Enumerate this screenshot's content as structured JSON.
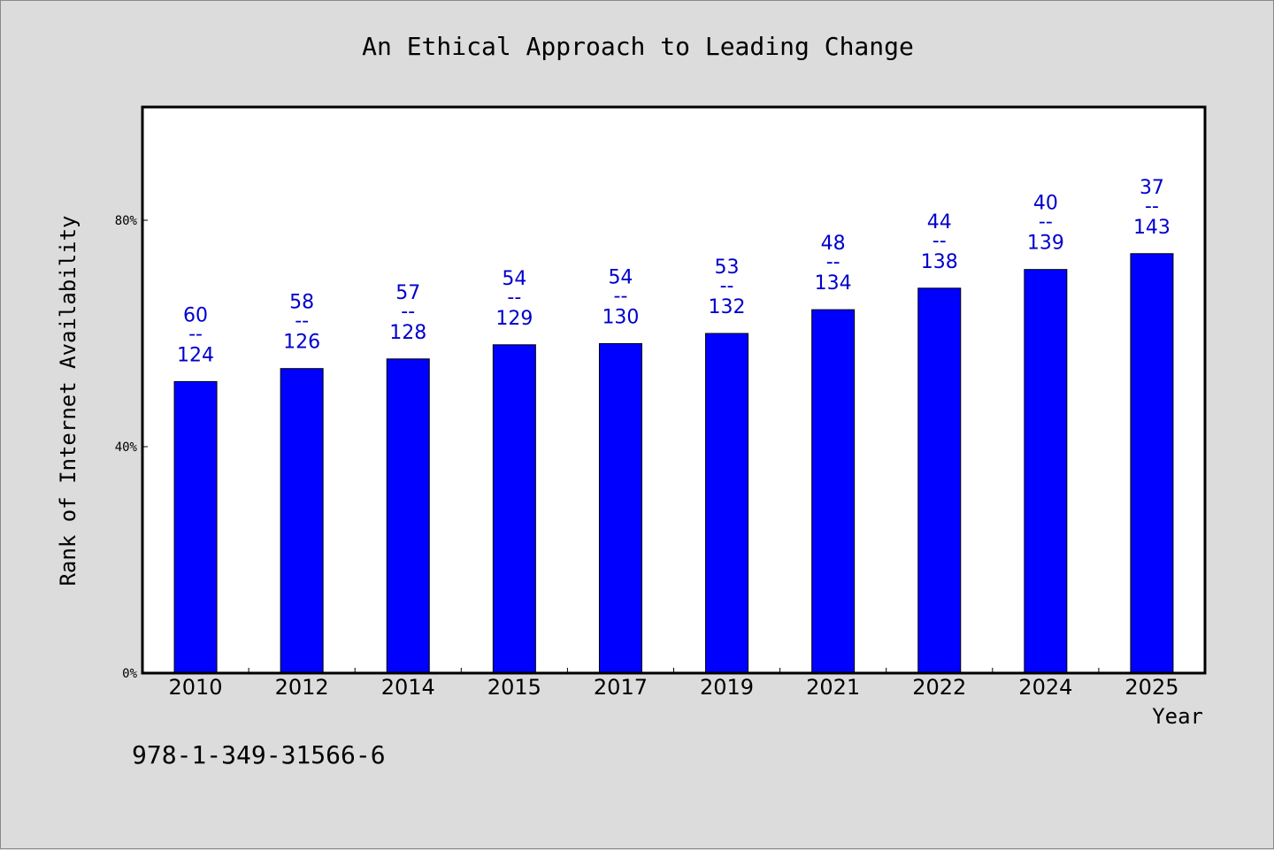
{
  "colors": {
    "background": "#dcdcdc",
    "plot_background": "#ffffff",
    "bar_fill": "#0000ff",
    "bar_stroke": "#000000",
    "data_label": "#0000cc"
  },
  "footer": {
    "isbn": "978-1-349-31566-6"
  },
  "chart_data": {
    "type": "bar",
    "title": "An Ethical Approach to Leading Change",
    "xlabel": "Year",
    "ylabel": "Rank of Internet Availability",
    "ylim": [
      0,
      100
    ],
    "yticks": [
      {
        "value": 0,
        "label": "0%"
      },
      {
        "value": 40,
        "label": "40%"
      },
      {
        "value": 80,
        "label": "80%"
      }
    ],
    "grid": false,
    "categories": [
      "2010",
      "2012",
      "2014",
      "2015",
      "2017",
      "2019",
      "2021",
      "2022",
      "2024",
      "2025"
    ],
    "values": [
      51.5,
      53.8,
      55.5,
      58.0,
      58.2,
      60.0,
      64.2,
      68.0,
      71.3,
      74.1
    ],
    "annotations": [
      {
        "top": "60",
        "mid": "--",
        "bottom": "124"
      },
      {
        "top": "58",
        "mid": "--",
        "bottom": "126"
      },
      {
        "top": "57",
        "mid": "--",
        "bottom": "128"
      },
      {
        "top": "54",
        "mid": "--",
        "bottom": "129"
      },
      {
        "top": "54",
        "mid": "--",
        "bottom": "130"
      },
      {
        "top": "53",
        "mid": "--",
        "bottom": "132"
      },
      {
        "top": "48",
        "mid": "--",
        "bottom": "134"
      },
      {
        "top": "44",
        "mid": "--",
        "bottom": "138"
      },
      {
        "top": "40",
        "mid": "--",
        "bottom": "139"
      },
      {
        "top": "37",
        "mid": "--",
        "bottom": "143"
      }
    ]
  }
}
